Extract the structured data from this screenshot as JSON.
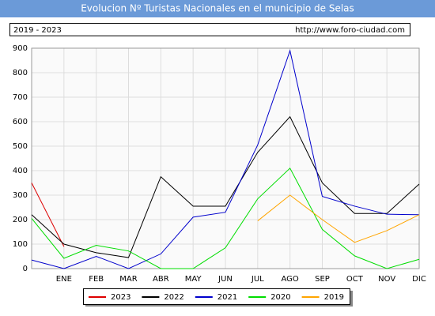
{
  "chart_data": {
    "type": "line",
    "title": "Evolucion Nº Turistas Nacionales en el municipio de Selas",
    "subtitle": "2019 - 2023",
    "source": "http://www.foro-ciudad.com",
    "categories": [
      null,
      "ENE",
      "FEB",
      "MAR",
      "ABR",
      "MAY",
      "JUN",
      "JUL",
      "AGO",
      "SEP",
      "OCT",
      "NOV",
      "DIC"
    ],
    "series": [
      {
        "name": "2023",
        "color": "#dd0000",
        "values": [
          350,
          90,
          null,
          null,
          null,
          null,
          null,
          null,
          null,
          null,
          null,
          null,
          null
        ]
      },
      {
        "name": "2022",
        "color": "#000000",
        "values": [
          220,
          100,
          65,
          45,
          375,
          255,
          255,
          475,
          620,
          350,
          225,
          225,
          345
        ]
      },
      {
        "name": "2021",
        "color": "#0000cc",
        "values": [
          35,
          0,
          50,
          0,
          60,
          210,
          230,
          505,
          890,
          295,
          255,
          222,
          220
        ]
      },
      {
        "name": "2020",
        "color": "#00dd00",
        "values": [
          205,
          42,
          95,
          72,
          0,
          0,
          85,
          285,
          410,
          160,
          52,
          0,
          38
        ]
      },
      {
        "name": "2019",
        "color": "#ffa500",
        "values": [
          null,
          null,
          null,
          null,
          null,
          null,
          null,
          195,
          300,
          200,
          107,
          155,
          220
        ]
      }
    ],
    "ylim": [
      0,
      900
    ],
    "yticks": [
      0,
      100,
      200,
      300,
      400,
      500,
      600,
      700,
      800,
      900
    ],
    "grid": true
  }
}
